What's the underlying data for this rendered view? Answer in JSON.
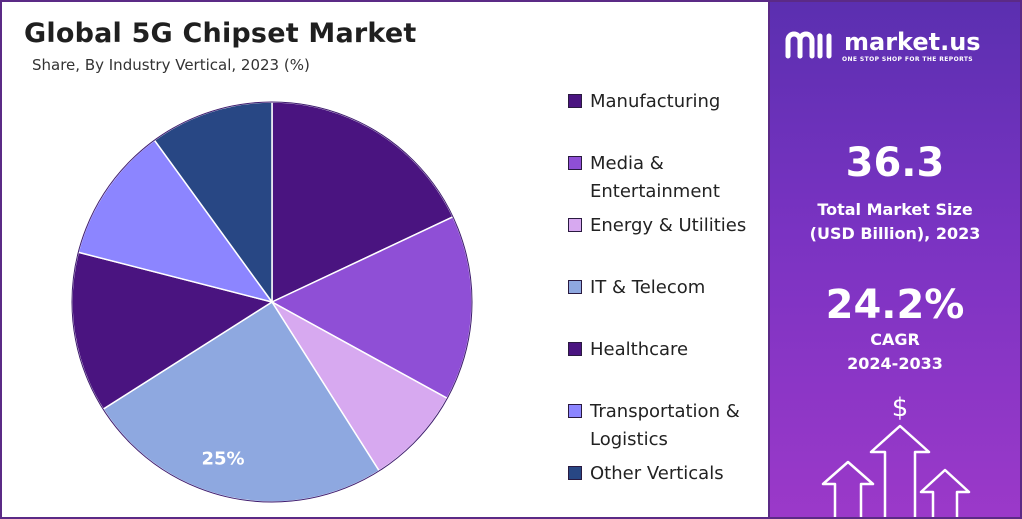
{
  "title": "Global 5G Chipset Market",
  "subtitle": "Share, By Industry Vertical, 2023 (%)",
  "chart_data": {
    "type": "pie",
    "title": "Global 5G Chipset Market",
    "subtitle": "Share, By Industry Vertical, 2023 (%)",
    "slices": [
      {
        "label": "Manufacturing",
        "value": 18,
        "color": "#4a1480"
      },
      {
        "label": "Media & Entertainment",
        "value": 15,
        "color": "#8f4fd6"
      },
      {
        "label": "Energy & Utilities",
        "value": 8,
        "color": "#d7a9f0"
      },
      {
        "label": "IT & Telecom",
        "value": 25,
        "color": "#8ea8e0",
        "data_label": "25%"
      },
      {
        "label": "Healthcare",
        "value": 13,
        "color": "#4a1480"
      },
      {
        "label": "Transportation & Logistics",
        "value": 11,
        "color": "#8c85ff"
      },
      {
        "label": "Other Verticals",
        "value": 10,
        "color": "#284784"
      }
    ],
    "legend_position": "right"
  },
  "legend": [
    {
      "lines": [
        "Manufacturing"
      ],
      "color": "#4a1480"
    },
    {
      "lines": [
        "Media &",
        "Entertainment"
      ],
      "color": "#8f4fd6"
    },
    {
      "lines": [
        "Energy & Utilities"
      ],
      "color": "#d7a9f0"
    },
    {
      "lines": [
        "IT & Telecom"
      ],
      "color": "#8ea8e0"
    },
    {
      "lines": [
        "Healthcare"
      ],
      "color": "#4a1480"
    },
    {
      "lines": [
        "Transportation &",
        "Logistics"
      ],
      "color": "#8c85ff"
    },
    {
      "lines": [
        "Other Verticals"
      ],
      "color": "#284784"
    }
  ],
  "brand": {
    "name": "market.us",
    "tagline": "ONE STOP SHOP FOR THE REPORTS"
  },
  "stats": {
    "market_size_value": "36.3",
    "market_size_label_1": "Total Market Size",
    "market_size_label_2": "(USD Billion), 2023",
    "cagr_value": "24.2%",
    "cagr_label_1": "CAGR",
    "cagr_label_2": "2024-2033"
  },
  "icons": {
    "dollar": "$"
  }
}
